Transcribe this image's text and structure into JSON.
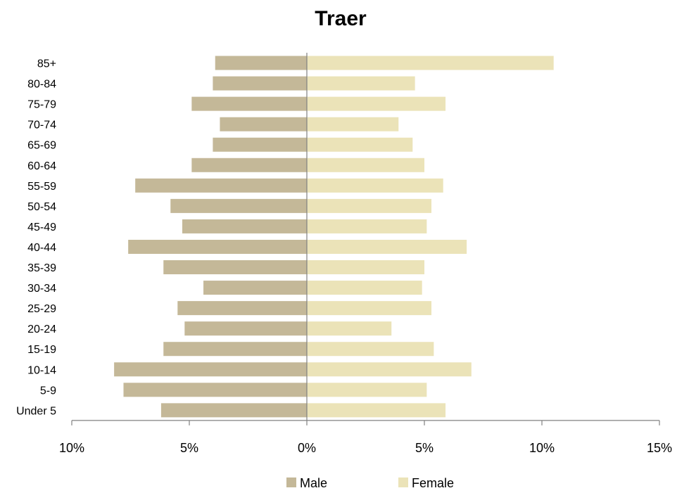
{
  "chart_data": {
    "type": "bar",
    "orientation": "horizontal",
    "title": "Traer",
    "categories": [
      "Under 5",
      "5-9",
      "10-14",
      "15-19",
      "20-24",
      "25-29",
      "30-34",
      "35-39",
      "40-44",
      "45-49",
      "50-54",
      "55-59",
      "60-64",
      "65-69",
      "70-74",
      "75-79",
      "80-84",
      "85+"
    ],
    "series": [
      {
        "name": "Male",
        "color": "#c4b898",
        "values": [
          -6.2,
          -7.8,
          -8.2,
          -6.1,
          -5.2,
          -5.5,
          -4.4,
          -6.1,
          -7.6,
          -5.3,
          -5.8,
          -7.3,
          -4.9,
          -4.0,
          -3.7,
          -4.9,
          -4.0,
          -3.9
        ]
      },
      {
        "name": "Female",
        "color": "#ebe3b8",
        "values": [
          5.9,
          5.1,
          7.0,
          5.4,
          3.6,
          5.3,
          4.9,
          5.0,
          6.8,
          5.1,
          5.3,
          5.8,
          5.0,
          4.5,
          3.9,
          5.9,
          4.6,
          10.5
        ]
      }
    ],
    "x_axis": {
      "range": [
        -10,
        15
      ],
      "ticks": [
        -10,
        -5,
        0,
        5,
        10,
        15
      ],
      "tick_labels": [
        "10%",
        "5%",
        "0%",
        "5%",
        "10%",
        "15%"
      ]
    },
    "grid": false,
    "legend_position": "bottom"
  }
}
